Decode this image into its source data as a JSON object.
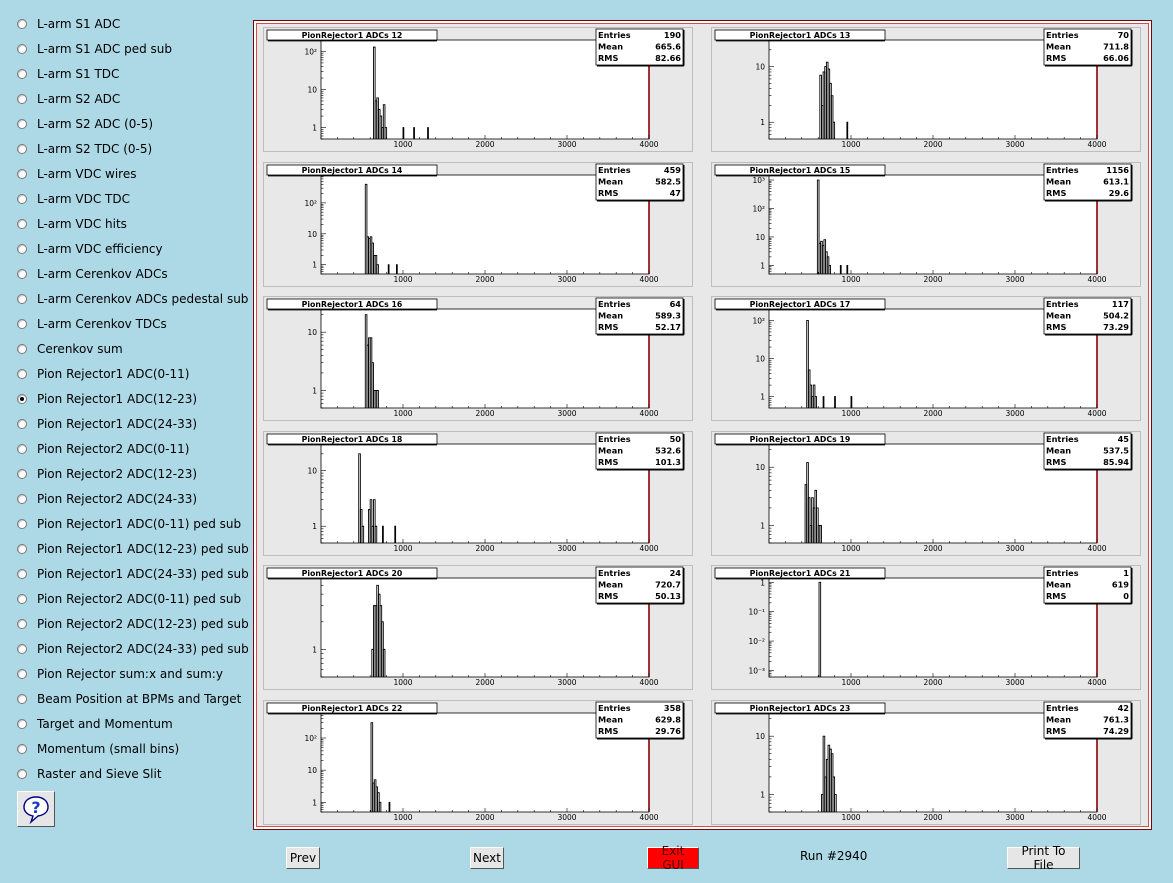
{
  "sidebar": {
    "items": [
      {
        "label": "L-arm S1 ADC",
        "checked": false
      },
      {
        "label": "L-arm S1 ADC ped sub",
        "checked": false
      },
      {
        "label": "L-arm S1 TDC",
        "checked": false
      },
      {
        "label": "L-arm S2 ADC",
        "checked": false
      },
      {
        "label": "L-arm S2 ADC (0-5)",
        "checked": false
      },
      {
        "label": "L-arm S2 TDC (0-5)",
        "checked": false
      },
      {
        "label": "L-arm VDC wires",
        "checked": false
      },
      {
        "label": "L-arm VDC TDC",
        "checked": false
      },
      {
        "label": "L-arm VDC hits",
        "checked": false
      },
      {
        "label": "L-arm VDC efficiency",
        "checked": false
      },
      {
        "label": "L-arm Cerenkov ADCs",
        "checked": false
      },
      {
        "label": "L-arm Cerenkov ADCs pedestal sub",
        "checked": false
      },
      {
        "label": "L-arm Cerenkov TDCs",
        "checked": false
      },
      {
        "label": "Cerenkov sum",
        "checked": false
      },
      {
        "label": "Pion Rejector1 ADC(0-11)",
        "checked": false
      },
      {
        "label": "Pion Rejector1 ADC(12-23)",
        "checked": true
      },
      {
        "label": "Pion Rejector1 ADC(24-33)",
        "checked": false
      },
      {
        "label": "Pion Rejector2 ADC(0-11)",
        "checked": false
      },
      {
        "label": "Pion Rejector2 ADC(12-23)",
        "checked": false
      },
      {
        "label": "Pion Rejector2 ADC(24-33)",
        "checked": false
      },
      {
        "label": "Pion Rejector1 ADC(0-11) ped sub",
        "checked": false
      },
      {
        "label": "Pion Rejector1 ADC(12-23) ped sub",
        "checked": false
      },
      {
        "label": "Pion Rejector1 ADC(24-33) ped sub",
        "checked": false
      },
      {
        "label": "Pion Rejector2 ADC(0-11) ped sub",
        "checked": false
      },
      {
        "label": "Pion Rejector2 ADC(12-23) ped sub",
        "checked": false
      },
      {
        "label": "Pion Rejector2 ADC(24-33) ped sub",
        "checked": false
      },
      {
        "label": "Pion Rejector sum:x and sum:y",
        "checked": false
      },
      {
        "label": "Beam Position at BPMs and Target",
        "checked": false
      },
      {
        "label": "Target and Momentum",
        "checked": false
      },
      {
        "label": "Momentum (small bins)",
        "checked": false
      },
      {
        "label": "Raster and Sieve Slit",
        "checked": false
      }
    ],
    "help_icon": "question-mark-help-icon"
  },
  "buttons": {
    "prev": "Prev",
    "next": "Next",
    "exit": "Exit GUI",
    "print": "Print To File"
  },
  "run_label": "Run #2940",
  "stats_labels": {
    "entries": "Entries",
    "mean": "Mean",
    "rms": "RMS"
  },
  "chart_data": [
    {
      "type": "bar",
      "title": "PionRejector1 ADCs 12",
      "entries": "190",
      "mean": "665.6",
      "rms": "82.66",
      "xlim": [
        0,
        4000
      ],
      "x_ticks": [
        "1000",
        "2000",
        "3000",
        "4000"
      ],
      "ylog": true,
      "y_ticks": [
        "1",
        "10",
        "10²"
      ],
      "ylim": [
        0.5,
        200
      ],
      "bins": [
        [
          640,
          660,
          130
        ],
        [
          660,
          680,
          5
        ],
        [
          680,
          700,
          6
        ],
        [
          700,
          720,
          3
        ],
        [
          720,
          740,
          2
        ],
        [
          740,
          760,
          1
        ],
        [
          760,
          780,
          4
        ],
        [
          780,
          800,
          1
        ],
        [
          1000,
          1010,
          1
        ],
        [
          1130,
          1140,
          1
        ],
        [
          1300,
          1310,
          1
        ]
      ]
    },
    {
      "type": "bar",
      "title": "PionRejector1 ADCs 13",
      "entries": "70",
      "mean": "711.8",
      "rms": "66.06",
      "xlim": [
        0,
        4000
      ],
      "x_ticks": [
        "1000",
        "2000",
        "3000",
        "4000"
      ],
      "ylog": true,
      "y_ticks": [
        "1",
        "10"
      ],
      "ylim": [
        0.5,
        30
      ],
      "bins": [
        [
          620,
          640,
          7
        ],
        [
          640,
          660,
          2
        ],
        [
          660,
          680,
          8
        ],
        [
          680,
          700,
          10
        ],
        [
          700,
          720,
          12
        ],
        [
          720,
          740,
          9
        ],
        [
          740,
          760,
          5
        ],
        [
          760,
          780,
          3
        ],
        [
          780,
          800,
          1
        ],
        [
          950,
          960,
          1
        ]
      ]
    },
    {
      "type": "bar",
      "title": "PionRejector1 ADCs 14",
      "entries": "459",
      "mean": "582.5",
      "rms": "47",
      "xlim": [
        0,
        4000
      ],
      "x_ticks": [
        "1000",
        "2000",
        "3000",
        "4000"
      ],
      "ylog": true,
      "y_ticks": [
        "1",
        "10",
        "10²"
      ],
      "ylim": [
        0.5,
        800
      ],
      "bins": [
        [
          540,
          560,
          400
        ],
        [
          560,
          580,
          8
        ],
        [
          580,
          600,
          7
        ],
        [
          600,
          620,
          8
        ],
        [
          620,
          640,
          5
        ],
        [
          640,
          660,
          2
        ],
        [
          660,
          680,
          2
        ],
        [
          680,
          700,
          1
        ],
        [
          820,
          830,
          1
        ],
        [
          920,
          930,
          1
        ]
      ]
    },
    {
      "type": "bar",
      "title": "PionRejector1 ADCs 15",
      "entries": "1156",
      "mean": "613.1",
      "rms": "29.6",
      "xlim": [
        0,
        4000
      ],
      "x_ticks": [
        "1000",
        "2000",
        "3000",
        "4000"
      ],
      "ylog": true,
      "y_ticks": [
        "1",
        "10",
        "10²",
        "10³"
      ],
      "ylim": [
        0.5,
        1500
      ],
      "bins": [
        [
          590,
          610,
          1000
        ],
        [
          610,
          630,
          6
        ],
        [
          630,
          650,
          7
        ],
        [
          650,
          670,
          5
        ],
        [
          670,
          690,
          8
        ],
        [
          690,
          710,
          3
        ],
        [
          710,
          730,
          2
        ],
        [
          730,
          750,
          1
        ],
        [
          870,
          880,
          1
        ],
        [
          950,
          960,
          1
        ]
      ]
    },
    {
      "type": "bar",
      "title": "PionRejector1 ADCs 16",
      "entries": "64",
      "mean": "589.3",
      "rms": "52.17",
      "xlim": [
        0,
        4000
      ],
      "x_ticks": [
        "1000",
        "2000",
        "3000",
        "4000"
      ],
      "ylog": true,
      "y_ticks": [
        "1",
        "10"
      ],
      "ylim": [
        0.5,
        25
      ],
      "bins": [
        [
          540,
          560,
          20
        ],
        [
          560,
          580,
          6
        ],
        [
          580,
          600,
          8
        ],
        [
          600,
          620,
          8
        ],
        [
          620,
          640,
          3
        ],
        [
          640,
          660,
          1
        ],
        [
          660,
          680,
          1
        ],
        [
          680,
          700,
          1
        ]
      ]
    },
    {
      "type": "bar",
      "title": "PionRejector1 ADCs 17",
      "entries": "117",
      "mean": "504.2",
      "rms": "73.29",
      "xlim": [
        0,
        4000
      ],
      "x_ticks": [
        "1000",
        "2000",
        "3000",
        "4000"
      ],
      "ylog": true,
      "y_ticks": [
        "1",
        "10",
        "10²"
      ],
      "ylim": [
        0.5,
        200
      ],
      "bins": [
        [
          460,
          480,
          100
        ],
        [
          480,
          500,
          5
        ],
        [
          500,
          520,
          2
        ],
        [
          520,
          540,
          1
        ],
        [
          540,
          560,
          2
        ],
        [
          560,
          580,
          1
        ],
        [
          660,
          670,
          1
        ],
        [
          800,
          810,
          1
        ],
        [
          1000,
          1010,
          1
        ]
      ]
    },
    {
      "type": "bar",
      "title": "PionRejector1 ADCs 18",
      "entries": "50",
      "mean": "532.6",
      "rms": "101.3",
      "xlim": [
        0,
        4000
      ],
      "x_ticks": [
        "1000",
        "2000",
        "3000",
        "4000"
      ],
      "ylog": true,
      "y_ticks": [
        "1",
        "10"
      ],
      "ylim": [
        0.5,
        30
      ],
      "bins": [
        [
          460,
          480,
          20
        ],
        [
          480,
          500,
          2
        ],
        [
          500,
          520,
          1
        ],
        [
          580,
          600,
          2
        ],
        [
          600,
          620,
          3
        ],
        [
          620,
          640,
          1
        ],
        [
          640,
          660,
          3
        ],
        [
          660,
          680,
          1
        ],
        [
          750,
          760,
          1
        ],
        [
          900,
          910,
          1
        ]
      ]
    },
    {
      "type": "bar",
      "title": "PionRejector1 ADCs 19",
      "entries": "45",
      "mean": "537.5",
      "rms": "85.94",
      "xlim": [
        0,
        4000
      ],
      "x_ticks": [
        "1000",
        "2000",
        "3000",
        "4000"
      ],
      "ylog": true,
      "y_ticks": [
        "1",
        "10"
      ],
      "ylim": [
        0.5,
        25
      ],
      "bins": [
        [
          440,
          460,
          5
        ],
        [
          460,
          480,
          12
        ],
        [
          480,
          500,
          3
        ],
        [
          500,
          520,
          1
        ],
        [
          520,
          540,
          3
        ],
        [
          540,
          560,
          2
        ],
        [
          560,
          580,
          4
        ],
        [
          580,
          600,
          2
        ],
        [
          600,
          620,
          1
        ],
        [
          620,
          640,
          1
        ]
      ]
    },
    {
      "type": "bar",
      "title": "PionRejector1 ADCs 20",
      "entries": "24",
      "mean": "720.7",
      "rms": "50.13",
      "xlim": [
        0,
        4000
      ],
      "x_ticks": [
        "1000",
        "2000",
        "3000",
        "4000"
      ],
      "ylog": true,
      "y_ticks": [
        "1"
      ],
      "ylim": [
        0.5,
        6
      ],
      "bins": [
        [
          620,
          640,
          1
        ],
        [
          640,
          660,
          3
        ],
        [
          660,
          680,
          3
        ],
        [
          680,
          700,
          5
        ],
        [
          700,
          720,
          4
        ],
        [
          720,
          740,
          3
        ],
        [
          740,
          760,
          2
        ],
        [
          760,
          780,
          1
        ]
      ]
    },
    {
      "type": "bar",
      "title": "PionRejector1 ADCs 21",
      "entries": "1",
      "mean": "619",
      "rms": "0",
      "xlim": [
        0,
        4000
      ],
      "x_ticks": [
        "1000",
        "2000",
        "3000",
        "4000"
      ],
      "ylog": true,
      "y_ticks": [
        "10⁻³",
        "10⁻²",
        "10⁻¹",
        "1"
      ],
      "ylim": [
        0.0006,
        1.4
      ],
      "bins": [
        [
          610,
          630,
          1
        ]
      ]
    },
    {
      "type": "bar",
      "title": "PionRejector1 ADCs 22",
      "entries": "358",
      "mean": "629.8",
      "rms": "29.76",
      "xlim": [
        0,
        4000
      ],
      "x_ticks": [
        "1000",
        "2000",
        "3000",
        "4000"
      ],
      "ylog": true,
      "y_ticks": [
        "1",
        "10",
        "10²"
      ],
      "ylim": [
        0.5,
        600
      ],
      "bins": [
        [
          610,
          630,
          300
        ],
        [
          630,
          650,
          4
        ],
        [
          650,
          670,
          5
        ],
        [
          670,
          690,
          3
        ],
        [
          690,
          710,
          2
        ],
        [
          710,
          730,
          1
        ],
        [
          830,
          840,
          1
        ]
      ]
    },
    {
      "type": "bar",
      "title": "PionRejector1 ADCs 23",
      "entries": "42",
      "mean": "761.3",
      "rms": "74.29",
      "xlim": [
        0,
        4000
      ],
      "x_ticks": [
        "1000",
        "2000",
        "3000",
        "4000"
      ],
      "ylog": true,
      "y_ticks": [
        "1",
        "10"
      ],
      "ylim": [
        0.5,
        25
      ],
      "bins": [
        [
          640,
          660,
          1
        ],
        [
          660,
          680,
          10
        ],
        [
          680,
          700,
          2
        ],
        [
          700,
          720,
          4
        ],
        [
          720,
          740,
          7
        ],
        [
          740,
          760,
          6
        ],
        [
          760,
          780,
          5
        ],
        [
          780,
          800,
          2
        ],
        [
          800,
          820,
          1
        ]
      ]
    }
  ]
}
